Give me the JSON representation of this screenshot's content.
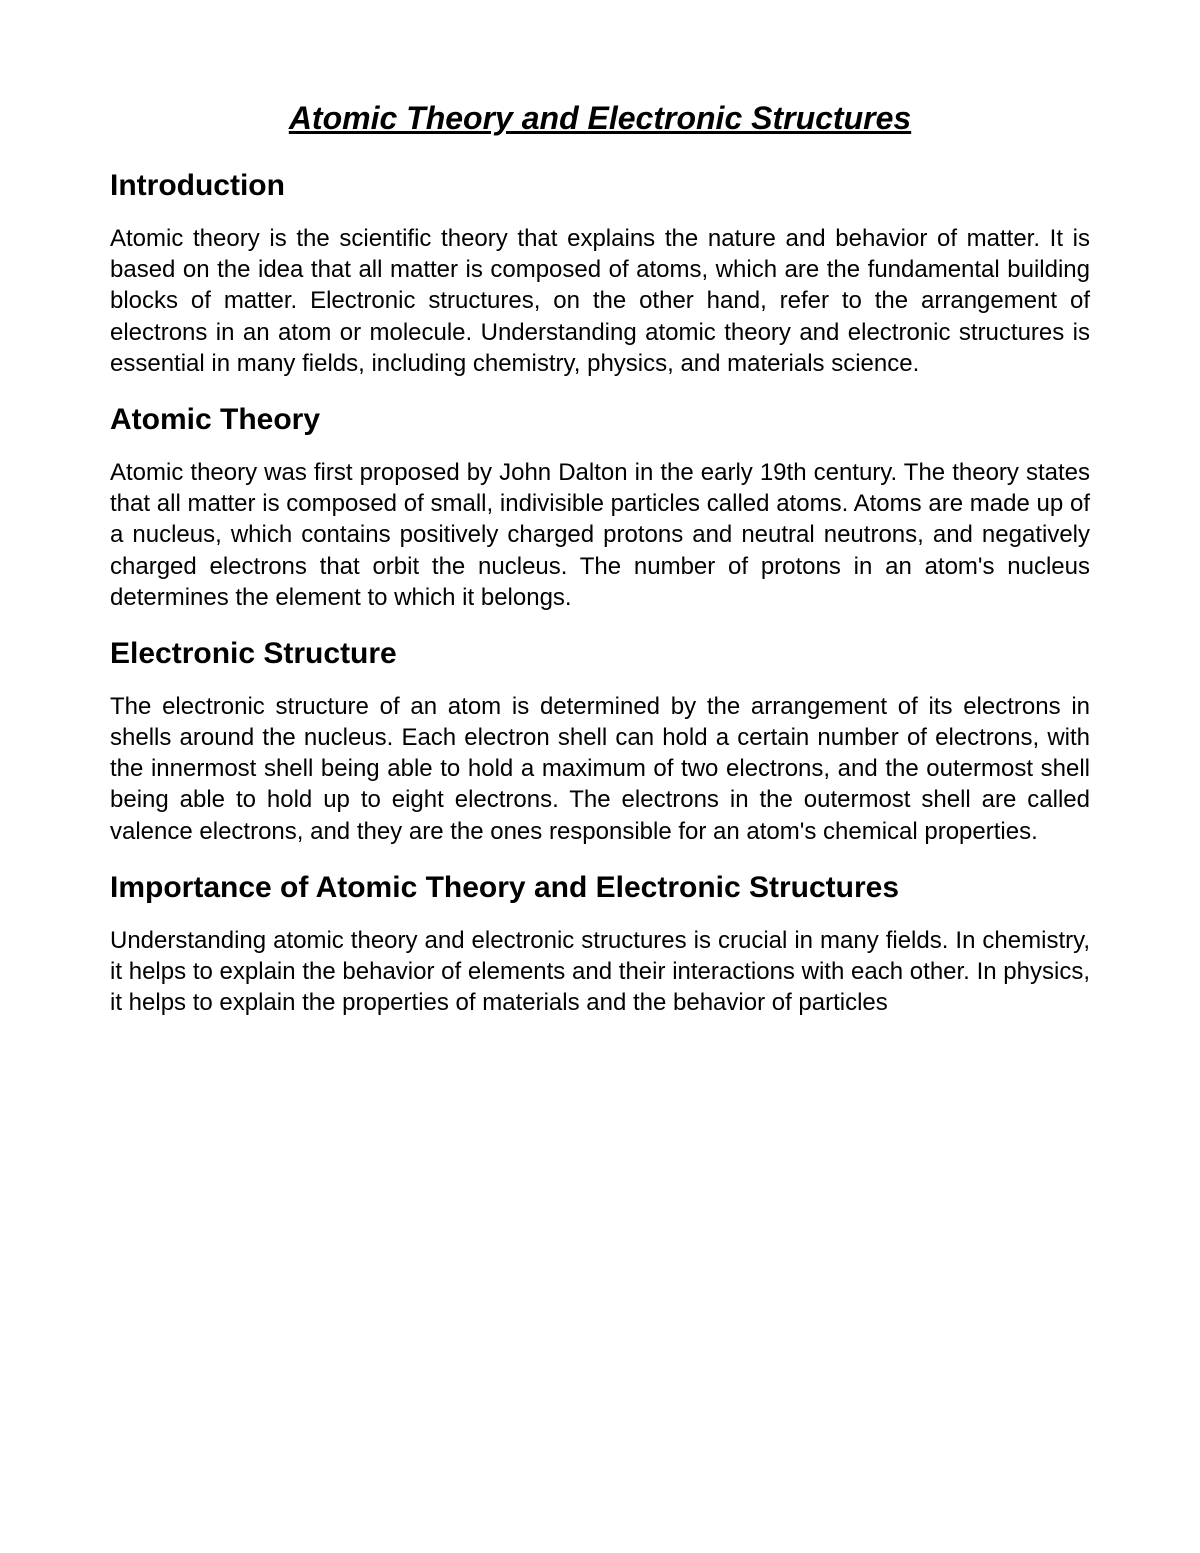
{
  "document": {
    "title": "Atomic Theory and Electronic Structures",
    "title_fontsize": 32,
    "title_style": "bold italic underline",
    "heading_fontsize": 30,
    "body_fontsize": 24,
    "text_color": "#000000",
    "background_color": "#ffffff",
    "font_family": "Verdana",
    "text_align": "justify",
    "sections": [
      {
        "heading": "Introduction",
        "body": "Atomic theory is the scientific theory that explains the nature and behavior of matter. It is based on the idea that all matter is composed of atoms, which are the fundamental building blocks of matter. Electronic structures, on the other hand, refer to the arrangement of electrons in an atom or molecule. Understanding atomic theory and electronic structures is essential in many fields, including chemistry, physics, and materials science."
      },
      {
        "heading": "Atomic Theory",
        "body": "Atomic theory was first proposed by John Dalton in the early 19th century. The theory states that all matter is composed of small, indivisible particles called atoms. Atoms are made up of a nucleus, which contains positively charged protons and neutral neutrons, and negatively charged electrons that orbit the nucleus. The number of protons in an atom's nucleus determines the element to which it belongs."
      },
      {
        "heading": "Electronic Structure",
        "body": "The electronic structure of an atom is determined by the arrangement of its electrons in shells around the nucleus. Each electron shell can hold a certain number of electrons, with the innermost shell being able to hold a maximum of two electrons, and the outermost shell being able to hold up to eight electrons. The electrons in the outermost shell are called valence electrons, and they are the ones responsible for an atom's chemical properties."
      },
      {
        "heading": "Importance of Atomic Theory and Electronic Structures",
        "body": "Understanding atomic theory and electronic structures is crucial in many fields. In chemistry, it helps to explain the behavior of elements and their interactions with each other. In physics, it helps to explain the properties of materials and the behavior of particles"
      }
    ]
  }
}
